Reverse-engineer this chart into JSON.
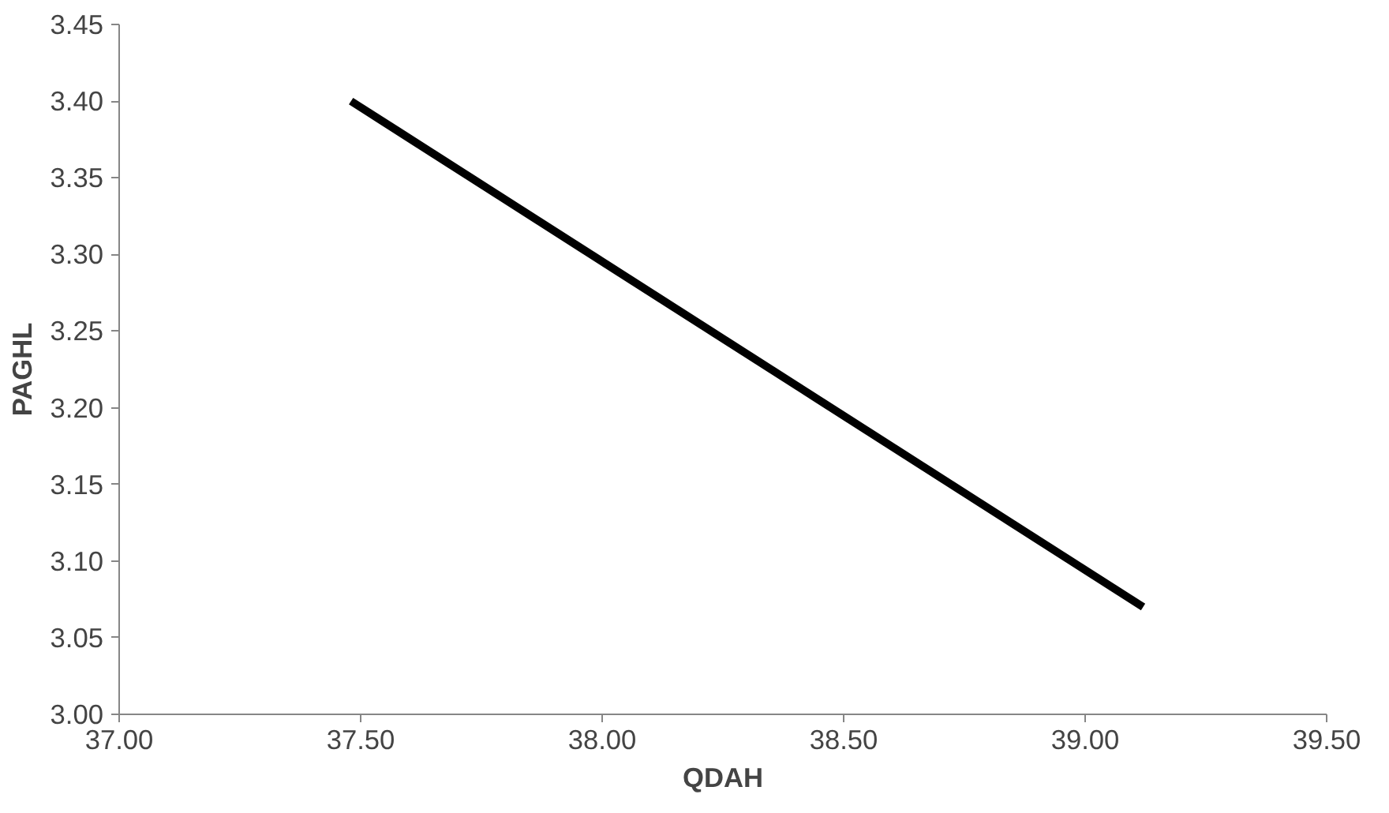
{
  "chart_data": {
    "type": "line",
    "xlabel": "QDAH",
    "ylabel": "PAGHL",
    "x": [
      37.48,
      39.12
    ],
    "series": [
      {
        "color": "#000000",
        "values": [
          3.4,
          3.07
        ]
      }
    ],
    "xlim": [
      37.0,
      39.5
    ],
    "xticks": [
      {
        "value": 37.0,
        "label": "37.00"
      },
      {
        "value": 37.5,
        "label": "37.50"
      },
      {
        "value": 38.0,
        "label": "38.00"
      },
      {
        "value": 38.5,
        "label": "38.50"
      },
      {
        "value": 39.0,
        "label": "39.00"
      },
      {
        "value": 39.5,
        "label": "39.50"
      }
    ],
    "ylim": [
      3.0,
      3.45
    ],
    "yticks": [
      {
        "value": 3.0,
        "label": "3.00"
      },
      {
        "value": 3.05,
        "label": "3.05"
      },
      {
        "value": 3.1,
        "label": "3.10"
      },
      {
        "value": 3.15,
        "label": "3.15"
      },
      {
        "value": 3.2,
        "label": "3.20"
      },
      {
        "value": 3.25,
        "label": "3.25"
      },
      {
        "value": 3.3,
        "label": "3.30"
      },
      {
        "value": 3.35,
        "label": "3.35"
      },
      {
        "value": 3.4,
        "label": "3.40"
      },
      {
        "value": 3.45,
        "label": "3.45"
      }
    ],
    "grid": false,
    "line_style": "solid"
  }
}
